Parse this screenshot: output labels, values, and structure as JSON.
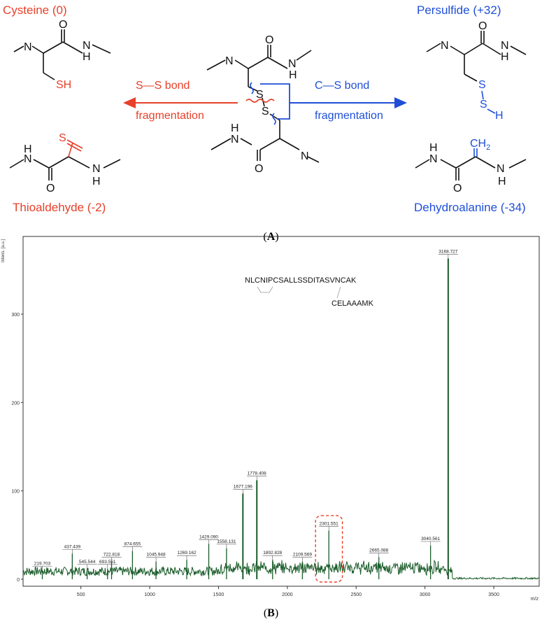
{
  "scheme": {
    "center_atoms": {
      "s1": "S",
      "s2": "S",
      "o_top": "O",
      "h_top": "H",
      "o_bottom": "O",
      "h_bottom": "H",
      "n_top": "N",
      "n_bottom": "N"
    },
    "left_arrow": {
      "line1": "S—S bond",
      "line2": "fragmentation"
    },
    "right_arrow": {
      "line1": "C—S bond",
      "line2": "fragmentation"
    },
    "products": {
      "cysteine": {
        "name": "Cysteine (0)",
        "group": "SH",
        "atoms": {
          "n": "N",
          "h": "H",
          "o": "O",
          "h2": "H"
        }
      },
      "thioaldehyde": {
        "name": "Thioaldehyde (-2)",
        "group": "S",
        "atoms": {
          "n": "N",
          "h": "H",
          "o": "O",
          "n2": "N",
          "h2": "H"
        }
      },
      "persulfide": {
        "name": "Persulfide (+32)",
        "group_s1": "S",
        "group_s2": "S",
        "group_h": "H",
        "atoms": {
          "n": "N",
          "h": "H",
          "o": "O",
          "h2": "H"
        }
      },
      "dehydroalanine": {
        "name": "Dehydroalanine (-34)",
        "group": "CH",
        "group_sub": "2",
        "atoms": {
          "n": "N",
          "h": "H",
          "o": "O",
          "n2": "N",
          "h2": "H"
        }
      }
    },
    "colors": {
      "red": "#e8402a",
      "blue": "#1f4fd8",
      "black": "#111111"
    }
  },
  "panel_labels": {
    "a": "A",
    "b": "B"
  },
  "chart_data": {
    "type": "line",
    "title": "",
    "xlabel": "m/z",
    "ylabel": "Intens. [a.u.]",
    "xlim": [
      80,
      3830
    ],
    "ylim": [
      0,
      380
    ],
    "xticks": [
      500,
      1000,
      1500,
      2000,
      2500,
      3000,
      3500
    ],
    "yticks": [
      0,
      100,
      200,
      300
    ],
    "series_color": "#1a5c2a",
    "peaks": [
      {
        "x": 219.703,
        "y": 10,
        "label": "219.703"
      },
      {
        "x": 437.439,
        "y": 29,
        "label": "437.439"
      },
      {
        "x": 545.544,
        "y": 12,
        "label": "545.544"
      },
      {
        "x": 693.551,
        "y": 12,
        "label": "693.551"
      },
      {
        "x": 722.818,
        "y": 20,
        "label": "722.818"
      },
      {
        "x": 874.655,
        "y": 32,
        "label": "874.655"
      },
      {
        "x": 1045.948,
        "y": 20,
        "label": "1045.948"
      },
      {
        "x": 1269.162,
        "y": 22,
        "label": "1269.162"
      },
      {
        "x": 1429.09,
        "y": 40,
        "label": "1429.090"
      },
      {
        "x": 1558.131,
        "y": 35,
        "label": "1558.131"
      },
      {
        "x": 1677.196,
        "y": 97,
        "label": "1677.196"
      },
      {
        "x": 1778.408,
        "y": 112,
        "label": "1778.408"
      },
      {
        "x": 1892.828,
        "y": 22,
        "label": "1892.828"
      },
      {
        "x": 2109.569,
        "y": 20,
        "label": "2109.569"
      },
      {
        "x": 2301.551,
        "y": 55,
        "label": "2301.551"
      },
      {
        "x": 2665.088,
        "y": 25,
        "label": "2665.088"
      },
      {
        "x": 3040.561,
        "y": 38,
        "label": "3040.561"
      },
      {
        "x": 3168.727,
        "y": 363,
        "label": "3168.727"
      }
    ],
    "annotations": {
      "peptide1": "NLCNIPCSALLSSDITASVNCAK",
      "peptide2": "CELAAAMK",
      "highlight_box": {
        "x_from": 2205,
        "x_to": 2400,
        "y_to": 72
      }
    }
  }
}
